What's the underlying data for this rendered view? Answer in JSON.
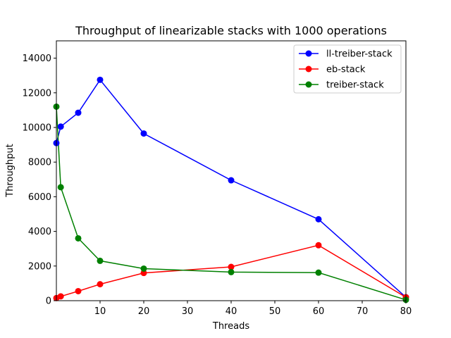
{
  "chart_data": {
    "type": "line",
    "title": "Throughput of linearizable stacks with 1000 operations",
    "xlabel": "Threads",
    "ylabel": "Throughput",
    "xlim": [
      0,
      80
    ],
    "ylim": [
      0,
      15000
    ],
    "xticks": [
      10,
      20,
      30,
      40,
      50,
      60,
      70,
      80
    ],
    "yticks": [
      0,
      2000,
      4000,
      6000,
      8000,
      10000,
      12000,
      14000
    ],
    "grid": false,
    "legend_position": "top-right",
    "x": [
      0,
      1,
      5,
      10,
      20,
      40,
      60,
      80
    ],
    "series": [
      {
        "name": "ll-treiber-stack",
        "color": "#0000ff",
        "values": [
          9100,
          10050,
          10850,
          12750,
          9650,
          6950,
          4700,
          200
        ]
      },
      {
        "name": "eb-stack",
        "color": "#ff0000",
        "values": [
          150,
          250,
          550,
          950,
          1600,
          1950,
          3200,
          200
        ]
      },
      {
        "name": "treiber-stack",
        "color": "#008000",
        "values": [
          11200,
          6550,
          3600,
          2300,
          1850,
          1650,
          1620,
          50
        ]
      }
    ]
  }
}
